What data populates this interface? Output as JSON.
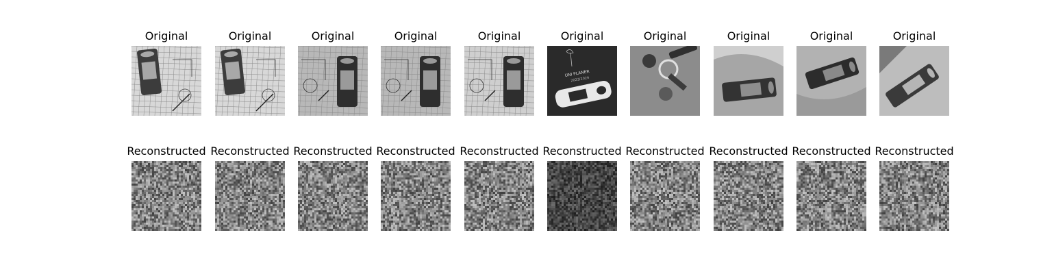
{
  "rows": [
    {
      "kind": "original",
      "title": "Original",
      "panels": [
        {
          "scene": "opener-on-grid-paper",
          "tone": "light"
        },
        {
          "scene": "opener-on-grid-paper",
          "tone": "light"
        },
        {
          "scene": "opener-on-grid-paper-right",
          "tone": "mid"
        },
        {
          "scene": "opener-on-grid-paper-right",
          "tone": "mid"
        },
        {
          "scene": "opener-on-grid-paper-right",
          "tone": "light"
        },
        {
          "scene": "opener-on-planner-cover",
          "tone": "dark",
          "caption_line1": "UNI PLANER",
          "caption_line2": "2023/2024"
        },
        {
          "scene": "keys-on-gray",
          "tone": "mid"
        },
        {
          "scene": "opener-on-fabric",
          "tone": "mid"
        },
        {
          "scene": "opener-on-fabric-tilted",
          "tone": "mid"
        },
        {
          "scene": "opener-diagonal-on-fabric",
          "tone": "light"
        }
      ]
    },
    {
      "kind": "reconstructed",
      "title": "Reconstructed",
      "panels": [
        {
          "scene": "noise",
          "tone": "mid"
        },
        {
          "scene": "noise",
          "tone": "mid"
        },
        {
          "scene": "noise",
          "tone": "mid"
        },
        {
          "scene": "noise",
          "tone": "mid"
        },
        {
          "scene": "noise",
          "tone": "mid"
        },
        {
          "scene": "noise",
          "tone": "dark"
        },
        {
          "scene": "noise",
          "tone": "mid"
        },
        {
          "scene": "noise",
          "tone": "mid"
        },
        {
          "scene": "noise",
          "tone": "mid"
        },
        {
          "scene": "noise",
          "tone": "mid"
        }
      ]
    }
  ]
}
